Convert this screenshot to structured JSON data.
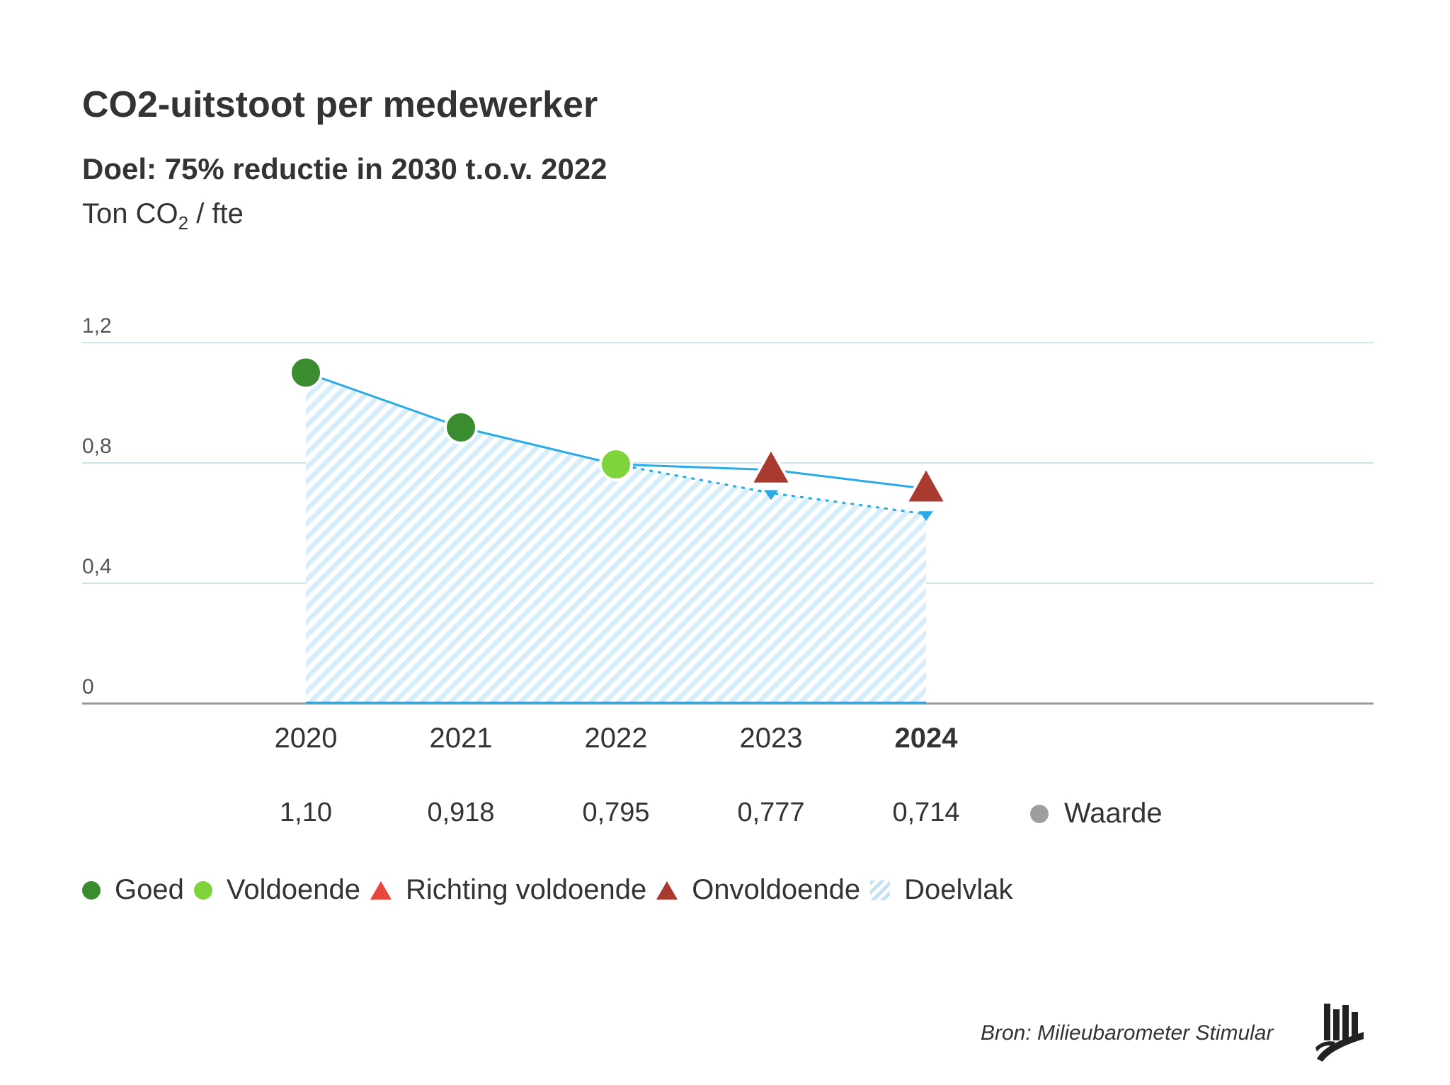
{
  "title": "CO2-uitstoot per medewerker",
  "subtitle": "Doel: 75% reductie in 2030 t.o.v. 2022",
  "unit": {
    "prefix": "Ton CO",
    "sub": "2",
    "suffix": " / fte"
  },
  "chart_data": {
    "type": "line",
    "categories": [
      "2020",
      "2021",
      "2022",
      "2023",
      "2024"
    ],
    "highlight_category": "2024",
    "series": [
      {
        "name": "Waarde",
        "values": [
          1.1,
          0.918,
          0.795,
          0.777,
          0.714
        ]
      },
      {
        "name": "Doelvlak",
        "values": [
          1.1,
          0.918,
          0.795,
          0.7,
          0.63
        ]
      }
    ],
    "value_labels": [
      "1,10",
      "0,918",
      "0,795",
      "0,777",
      "0,714"
    ],
    "point_status": [
      "Goed",
      "Goed",
      "Voldoende",
      "Onvoldoende",
      "Onvoldoende"
    ],
    "y_ticks": [
      0,
      0.4,
      0.8,
      1.2
    ],
    "y_tick_labels": [
      "0",
      "0,4",
      "0,8",
      "1,2"
    ],
    "ylim": [
      0,
      1.2
    ],
    "grid": true,
    "legend_position": "bottom-left"
  },
  "legend": [
    {
      "label": "Goed",
      "shape": "circle",
      "color": "#3a8c2e"
    },
    {
      "label": "Voldoende",
      "shape": "circle",
      "color": "#7ed43a"
    },
    {
      "label": "Richting voldoende",
      "shape": "triangle",
      "color": "#e8453c"
    },
    {
      "label": "Onvoldoende",
      "shape": "triangle",
      "color": "#a83a30"
    },
    {
      "label": "Doelvlak",
      "shape": "hatch",
      "color": "#bfe3f5"
    }
  ],
  "value_legend": {
    "label": "Waarde",
    "color": "#9e9e9e"
  },
  "colors": {
    "line": "#2aa9e8",
    "grid": "#cde3ee",
    "axis": "#999999"
  },
  "source": "Bron: Milieubarometer Stimular",
  "logo_icon": "stimular-logo-icon"
}
